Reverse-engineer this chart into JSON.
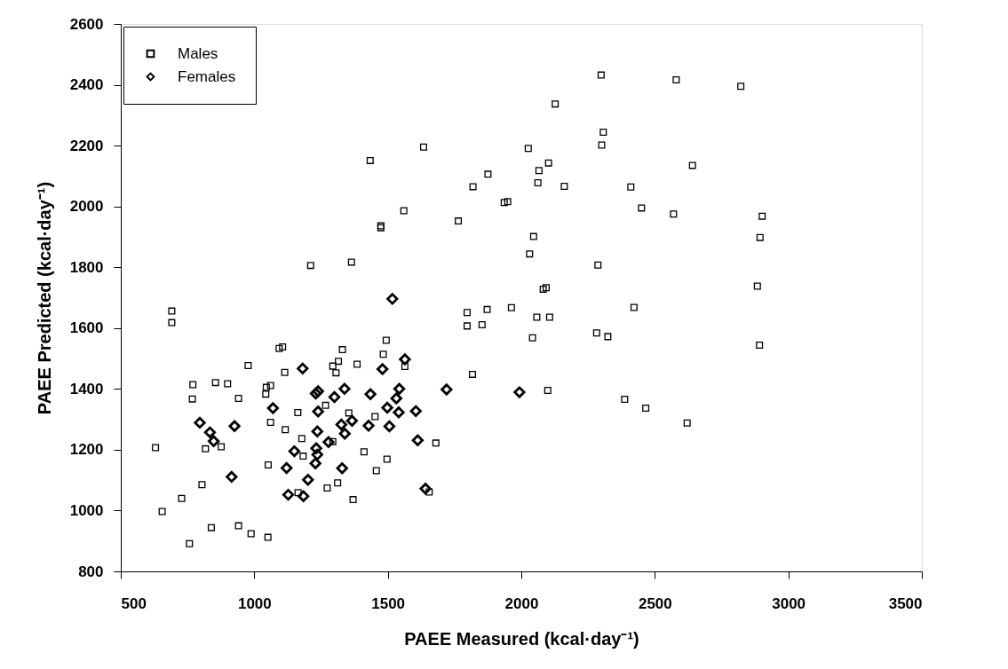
{
  "chart_data": {
    "type": "scatter",
    "xlabel": "PAEE Measured (kcal·day⁻¹)",
    "ylabel": "PAEE Predicted (kcal·day⁻¹)",
    "xlim": [
      500,
      3500
    ],
    "xticks": [
      500,
      1000,
      1500,
      2000,
      2500,
      3000,
      3500
    ],
    "ylim": [
      800,
      2600
    ],
    "yticks": [
      800,
      1000,
      1200,
      1400,
      1600,
      1800,
      2000,
      2200,
      2400,
      2600
    ],
    "grid": false,
    "legend": "top left",
    "series": [
      {
        "name": "Males",
        "color": "#000000",
        "marker": "square",
        "x": [
          1474,
          1474,
          1211,
          1364,
          691,
          691,
          1494,
          1093,
          1106,
          1330,
          1483,
          1315,
          977,
          1294,
          1306,
          1385,
          1114,
          770,
          855,
          900,
          768,
          941,
          1045,
          1061,
          1043,
          1267,
          1163,
          1354,
          1452,
          1061,
          1116,
          1178,
          1294,
          630,
          817,
          876,
          1183,
          1411,
          1497,
          1052,
          1457,
          804,
          1273,
          1312,
          728,
          1164,
          1370,
          655,
          839,
          941,
          988,
          1051,
          757,
          1560,
          1764,
          2046,
          2031,
          2287,
          2082,
          2093,
          1797,
          1797,
          1872,
          1853,
          1963,
          2058,
          2106,
          2042,
          2282,
          2324,
          2422,
          1564,
          1817,
          2099,
          2387,
          1680,
          1655,
          2450,
          2570,
          2902,
          2894,
          2884,
          2892,
          2466,
          2621,
          2299,
          2127,
          2307,
          2301,
          1634,
          2026,
          1434,
          2102,
          2066,
          1875,
          2062,
          1819,
          2161,
          2410,
          1936,
          1949,
          2580,
          2822,
          2641
        ],
        "values": [
          1930,
          1936,
          1806,
          1817,
          1656,
          1618,
          1560,
          1533,
          1538,
          1529,
          1514,
          1491,
          1477,
          1475,
          1453,
          1481,
          1454,
          1414,
          1421,
          1417,
          1367,
          1369,
          1405,
          1411,
          1383,
          1346,
          1322,
          1321,
          1309,
          1290,
          1266,
          1237,
          1227,
          1207,
          1203,
          1210,
          1179,
          1193,
          1169,
          1150,
          1131,
          1085,
          1074,
          1091,
          1040,
          1059,
          1036,
          997,
          944,
          950,
          924,
          912,
          891,
          1986,
          1952,
          1901,
          1844,
          1807,
          1728,
          1733,
          1651,
          1607,
          1661,
          1611,
          1667,
          1636,
          1636,
          1568,
          1584,
          1572,
          1668,
          1474,
          1448,
          1395,
          1366,
          1222,
          1061,
          1995,
          1975,
          1968,
          1898,
          1738,
          1544,
          1337,
          1288,
          2432,
          2337,
          2244,
          2202,
          2195,
          2191,
          2151,
          2143,
          2118,
          2106,
          2078,
          2065,
          2066,
          2064,
          2013,
          2016,
          2416,
          2395,
          2135
        ]
      },
      {
        "name": "Females",
        "color": "#000000",
        "marker": "diamond",
        "x": [
          1181,
          1480,
          1239,
          1230,
          1338,
          1435,
          1300,
          1070,
          1239,
          796,
          926,
          1326,
          1366,
          1428,
          834,
          848,
          1236,
          1339,
          1278,
          1232,
          1236,
          1229,
          1150,
          1121,
          1329,
          915,
          1201,
          1127,
          1184,
          1517,
          1564,
          1543,
          1532,
          1498,
          1541,
          1605,
          1506,
          1612,
          1641,
          1720,
          1993
        ],
        "values": [
          1467,
          1465,
          1392,
          1385,
          1400,
          1383,
          1373,
          1337,
          1326,
          1289,
          1278,
          1283,
          1295,
          1279,
          1257,
          1228,
          1260,
          1253,
          1225,
          1205,
          1184,
          1155,
          1195,
          1140,
          1139,
          1111,
          1101,
          1052,
          1047,
          1696,
          1497,
          1400,
          1369,
          1338,
          1323,
          1327,
          1277,
          1231,
          1072,
          1398,
          1389
        ]
      }
    ]
  }
}
